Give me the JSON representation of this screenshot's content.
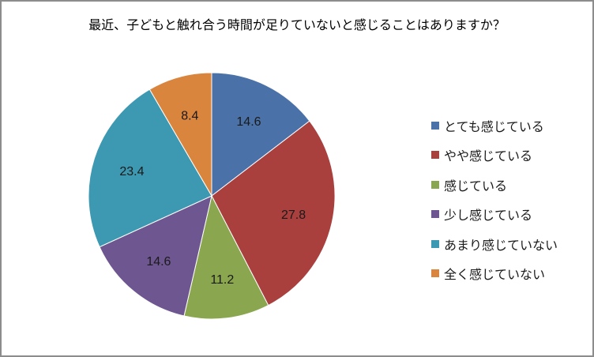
{
  "chart_data": {
    "type": "pie",
    "title": "最近、子どもと触れ合う時間が足りていないと感じることはありますか？",
    "categories": [
      "とても感じている",
      "やや感じている",
      "感じている",
      "少し感じている",
      "あまり感じていない",
      "全く感じていない"
    ],
    "values": [
      14.6,
      27.8,
      11.2,
      14.6,
      23.4,
      8.4
    ],
    "colors": [
      "#4a72a8",
      "#a9403e",
      "#8aa64e",
      "#6e5691",
      "#3d98b1",
      "#d9853e"
    ],
    "labels": [
      "14.6",
      "27.8",
      "11.2",
      "14.6",
      "23.4",
      "8.4"
    ],
    "legend_position": "right",
    "start_angle": "12 o'clock",
    "direction": "clockwise"
  }
}
